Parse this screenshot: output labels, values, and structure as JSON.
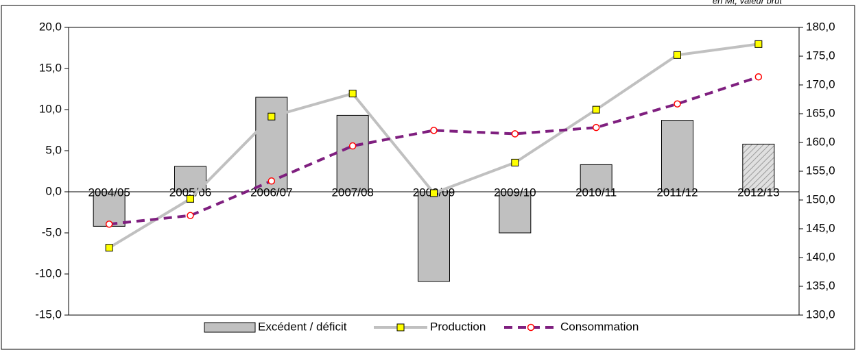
{
  "chart_data": {
    "type": "bar-line",
    "note": "en Mt, valeur brut",
    "categories": [
      "2004/05",
      "2005/06",
      "2006/07",
      "2007/08",
      "2008/09",
      "2009/10",
      "2010/11",
      "2011/12",
      "2012/13"
    ],
    "series": [
      {
        "name": "Excédent / déficit",
        "type": "bar",
        "axis": "y",
        "color": "#c0c0c0",
        "hatched": [
          false,
          false,
          false,
          false,
          false,
          false,
          false,
          false,
          true
        ],
        "values": [
          -4.2,
          3.1,
          11.5,
          9.3,
          -10.9,
          -5.0,
          3.3,
          8.7,
          5.8
        ]
      },
      {
        "name": "Production",
        "type": "line",
        "axis": "y2",
        "color": "#c0c0c0",
        "marker_color": "#ffff00",
        "values": [
          141.7,
          150.2,
          164.5,
          168.5,
          151.2,
          156.5,
          165.7,
          175.2,
          177.1
        ]
      },
      {
        "name": "Consommation",
        "type": "line",
        "axis": "y2",
        "color": "#7f1f7f",
        "marker_color": "#ff0000",
        "dashed": true,
        "values": [
          145.8,
          147.3,
          153.3,
          159.4,
          162.1,
          161.5,
          162.6,
          166.7,
          171.4
        ]
      }
    ],
    "ylim": [
      -15,
      20
    ],
    "yticks": [
      {
        "value": -15,
        "label": "-15,0"
      },
      {
        "value": -10,
        "label": "-10,0"
      },
      {
        "value": -5,
        "label": "-5,0"
      },
      {
        "value": 0,
        "label": "0,0"
      },
      {
        "value": 5,
        "label": "5,0"
      },
      {
        "value": 10,
        "label": "10,0"
      },
      {
        "value": 15,
        "label": "15,0"
      },
      {
        "value": 20,
        "label": "20,0"
      }
    ],
    "y2lim": [
      130,
      180
    ],
    "y2ticks": [
      {
        "value": 130,
        "label": "130,0"
      },
      {
        "value": 135,
        "label": "135,0"
      },
      {
        "value": 140,
        "label": "140,0"
      },
      {
        "value": 145,
        "label": "145,0"
      },
      {
        "value": 150,
        "label": "150,0"
      },
      {
        "value": 155,
        "label": "155,0"
      },
      {
        "value": 160,
        "label": "160,0"
      },
      {
        "value": 165,
        "label": "165,0"
      },
      {
        "value": 170,
        "label": "170,0"
      },
      {
        "value": 175,
        "label": "175,0"
      },
      {
        "value": 180,
        "label": "180,0"
      }
    ],
    "legend": "bottom"
  }
}
